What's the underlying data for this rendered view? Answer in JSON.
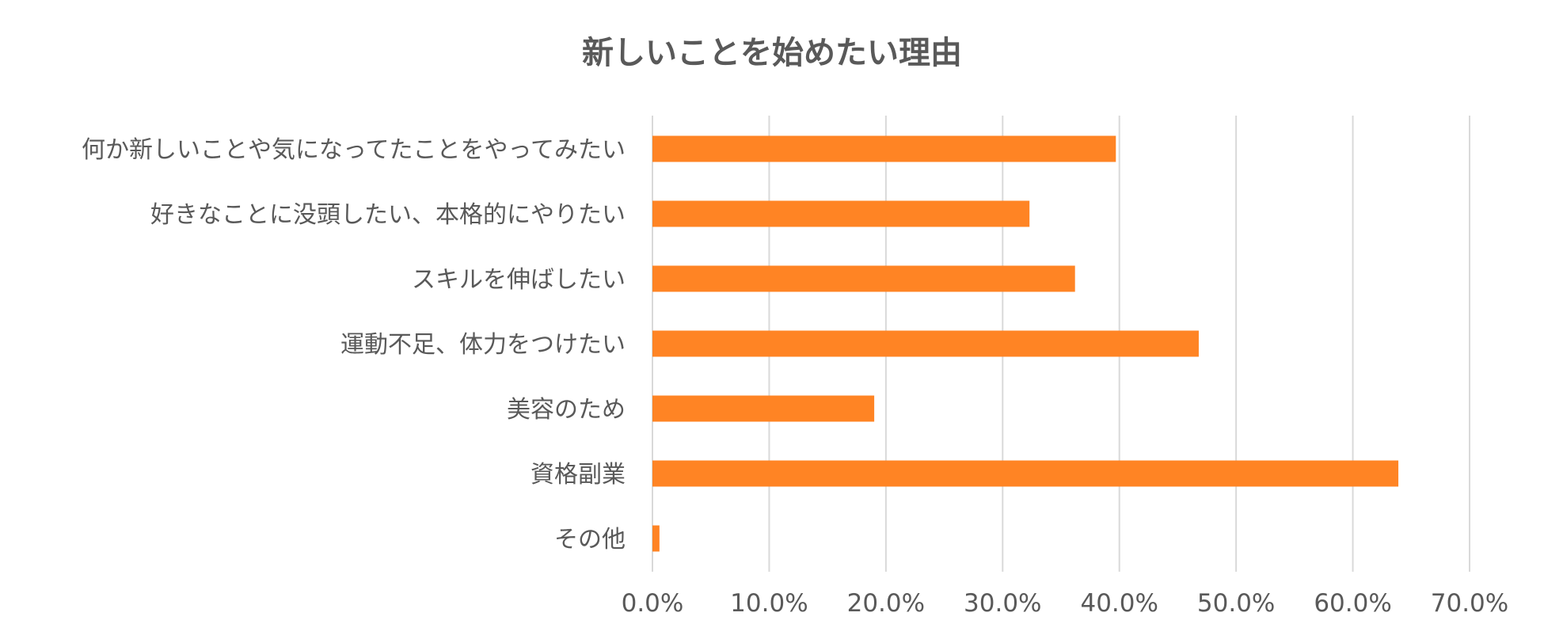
{
  "chart_data": {
    "type": "bar",
    "orientation": "horizontal",
    "title": "新しいことを始めたい理由",
    "categories": [
      "何か新しいことや気になってたことをやってみたい",
      "好きなことに没頭したい、本格的にやりたい",
      "スキルを伸ばしたい",
      "運動不足、体力をつけたい",
      "美容のため",
      "資格副業",
      "その他"
    ],
    "values": [
      39.7,
      32.3,
      36.2,
      46.8,
      19.0,
      63.9,
      0.6
    ],
    "xlim": [
      0,
      70
    ],
    "xticks": [
      0,
      10,
      20,
      30,
      40,
      50,
      60,
      70
    ],
    "xtick_labels": [
      "0.0%",
      "10.0%",
      "20.0%",
      "30.0%",
      "40.0%",
      "50.0%",
      "60.0%",
      "70.0%"
    ],
    "grid": "vertical",
    "legend": "none",
    "colors": {
      "bar": "#FF8424",
      "grid": "#D9D9D9",
      "text": "#595959"
    }
  }
}
